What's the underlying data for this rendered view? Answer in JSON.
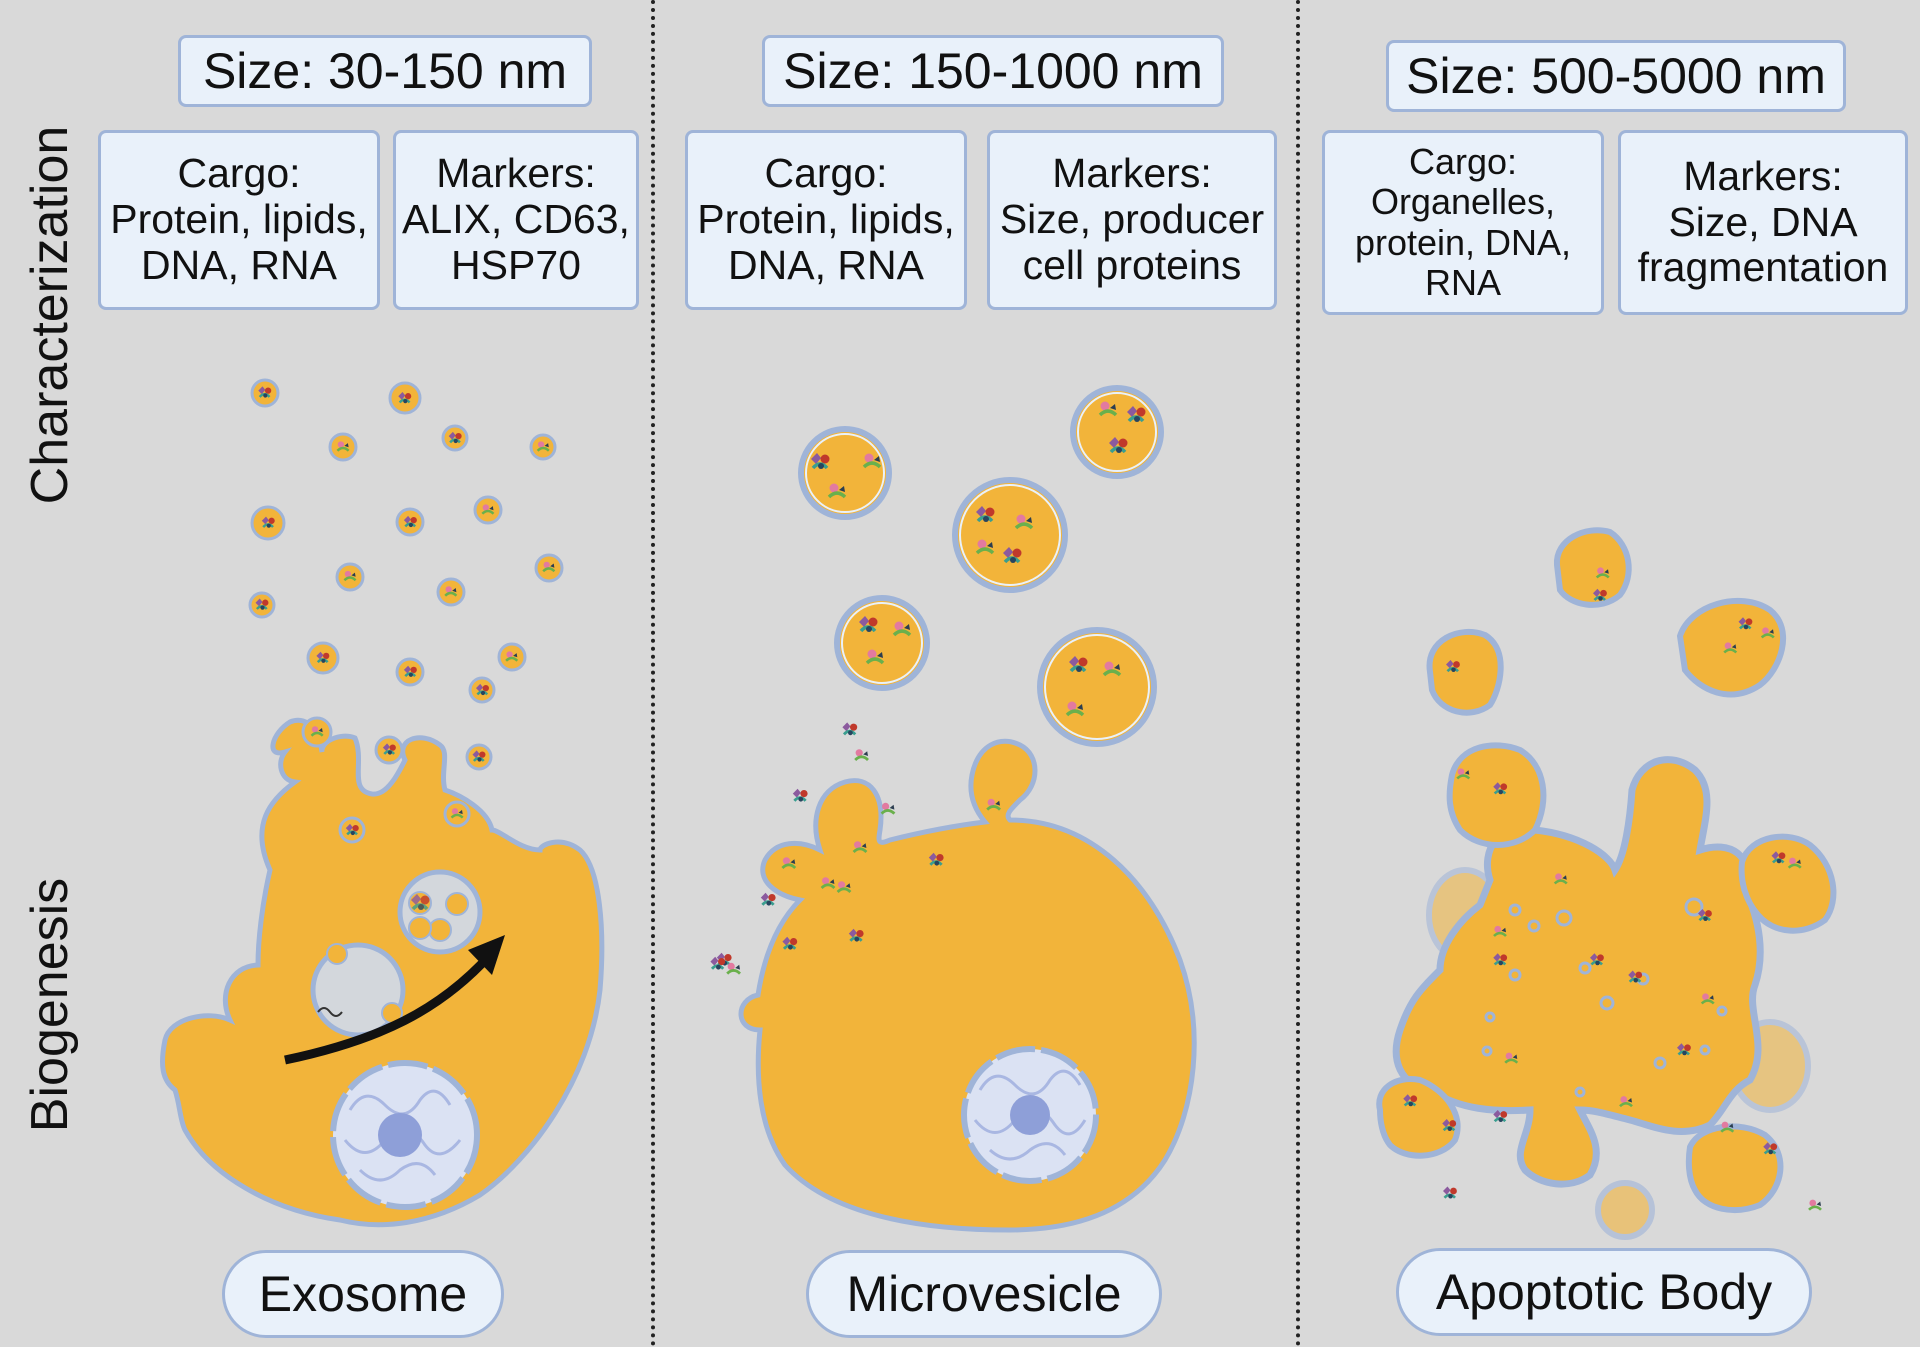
{
  "side_labels": {
    "top": "Characterization",
    "bottom": "Biogenesis"
  },
  "columns": [
    {
      "size": "Size: 30-150 nm",
      "cargo_title": "Cargo:",
      "cargo_lines": [
        "Protein, lipids,",
        "DNA, RNA"
      ],
      "markers_title": "Markers:",
      "markers_lines": [
        "ALIX, CD63,",
        "HSP70"
      ],
      "name": "Exosome"
    },
    {
      "size": "Size: 150-1000 nm",
      "cargo_title": "Cargo:",
      "cargo_lines": [
        "Protein, lipids,",
        "DNA, RNA"
      ],
      "markers_title": "Markers:",
      "markers_lines": [
        "Size, producer",
        "cell proteins"
      ],
      "name": "Microvesicle"
    },
    {
      "size": "Size: 500-5000 nm",
      "cargo_title": "Cargo:",
      "cargo_lines": [
        "Organelles,",
        "protein, DNA,",
        "RNA"
      ],
      "markers_title": "Markers:",
      "markers_lines": [
        "Size, DNA",
        "fragmentation"
      ],
      "name": "Apoptotic Body"
    }
  ],
  "colors": {
    "background": "#d9d9d9",
    "cytoplasm": "#f2b43a",
    "membrane": "#9fb4d8",
    "box_fill": "#e9f1fa",
    "nucleus": "#dbe2f3",
    "nucleolus": "#8e9fd8",
    "arrow": "#111111"
  }
}
